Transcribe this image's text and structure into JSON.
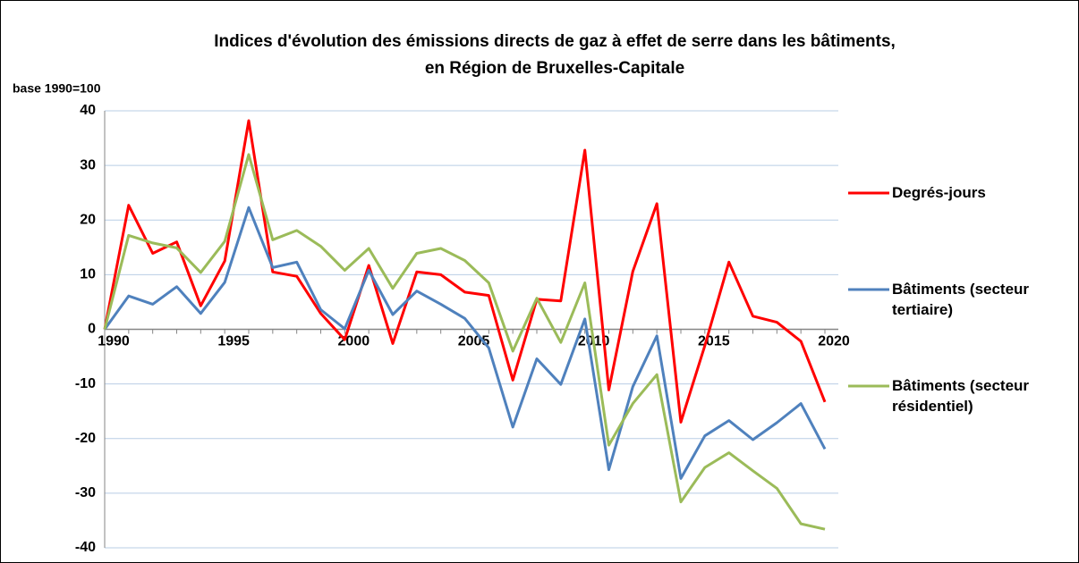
{
  "chart_data": {
    "type": "line",
    "title": [
      "Indices d'évolution des émissions directs de gaz à effet de serre dans les bâtiments,",
      "en Région de Bruxelles-Capitale"
    ],
    "y_label": "base 1990=100",
    "x": [
      1990,
      1991,
      1992,
      1993,
      1994,
      1995,
      1996,
      1997,
      1998,
      1999,
      2000,
      2001,
      2002,
      2003,
      2004,
      2005,
      2006,
      2007,
      2008,
      2009,
      2010,
      2011,
      2012,
      2013,
      2014,
      2015,
      2016,
      2017,
      2018,
      2019,
      2020
    ],
    "xlim": [
      1990,
      2020
    ],
    "xticks": [
      1990,
      1995,
      2000,
      2005,
      2010,
      2015,
      2020
    ],
    "ylim": [
      -40,
      40
    ],
    "yticks": [
      -40,
      -30,
      -20,
      -10,
      0,
      10,
      20,
      30,
      40
    ],
    "grid": true,
    "legend": "right",
    "series": [
      {
        "name": "Degrés-jours",
        "color": "#ff0000",
        "values": [
          0,
          22.7,
          13.9,
          16,
          4.3,
          12.5,
          38.2,
          10.5,
          9.7,
          2.9,
          -1.9,
          11.7,
          -2.6,
          10.5,
          10,
          6.8,
          6.2,
          -9.3,
          5.5,
          5.2,
          32.8,
          -11.1,
          10.6,
          23,
          -17,
          -3,
          12.3,
          2.4,
          1.3,
          -2.2,
          -13.3
        ]
      },
      {
        "name": "Bâtiments (secteur tertiaire)",
        "color": "#4f81bd",
        "values": [
          0,
          6.1,
          4.6,
          7.8,
          2.9,
          8.6,
          22.3,
          11.3,
          12.3,
          3.6,
          0.1,
          10.8,
          2.7,
          7,
          4.6,
          2,
          -3.4,
          -17.9,
          -5.4,
          -10.1,
          1.9,
          -25.7,
          -10.5,
          -1.2,
          -27.3,
          -19.5,
          -16.7,
          -20.2,
          -17.1,
          -13.6,
          -21.9
        ]
      },
      {
        "name": "Bâtiments (secteur résidentiel)",
        "color": "#9bbb59",
        "values": [
          0,
          17.2,
          15.8,
          14.9,
          10.4,
          16.1,
          32,
          16.4,
          18.1,
          15.2,
          10.8,
          14.8,
          7.5,
          13.9,
          14.8,
          12.6,
          8.5,
          -4,
          5.7,
          -2.4,
          8.5,
          -21.2,
          -13.6,
          -8.3,
          -31.6,
          -25.3,
          -22.6,
          -25.9,
          -29.1,
          -35.6,
          -36.6
        ]
      }
    ]
  }
}
